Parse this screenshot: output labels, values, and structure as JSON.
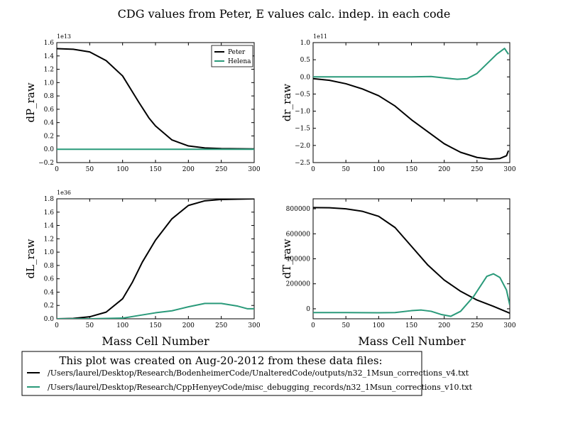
{
  "figure": {
    "title": "CDG values from Peter, E values calc. indep. in each code",
    "xlabel": "Mass Cell Number",
    "note_title": "This plot was created on Aug-20-2012 from these data files:",
    "files": [
      {
        "color": "#000000",
        "label": "/Users/laurel/Desktop/Research/BodenheimerCode/UnalteredCode/outputs/n32_1Msun_corrections_v4.txt"
      },
      {
        "color": "#2a9a7a",
        "label": "/Users/laurel/Desktop/Research/CppHenyeyCode/misc_debugging_records/n32_1Msun_corrections_v10.txt"
      }
    ],
    "colors": {
      "peter": "#000000",
      "helena": "#2a9a7a"
    }
  },
  "chart_data": [
    {
      "type": "line",
      "ylabel": "dP_raw",
      "exponent": "1e13",
      "xlim": [
        0,
        300
      ],
      "ylim": [
        -0.2,
        1.6
      ],
      "xticks": [
        "0",
        "50",
        "100",
        "150",
        "200",
        "250",
        "300"
      ],
      "yticks": [
        "−0.2",
        "0.0",
        "0.2",
        "0.4",
        "0.6",
        "0.8",
        "1.0",
        "1.2",
        "1.4",
        "1.6"
      ],
      "legend": {
        "placement": "top-right",
        "entries": [
          "Peter",
          "Helena"
        ]
      },
      "series": [
        {
          "name": "Peter",
          "color": "#000000",
          "x": [
            0,
            25,
            50,
            75,
            100,
            115,
            125,
            140,
            150,
            175,
            200,
            225,
            250,
            300
          ],
          "y": [
            1.51,
            1.5,
            1.46,
            1.33,
            1.1,
            0.86,
            0.7,
            0.47,
            0.35,
            0.14,
            0.05,
            0.02,
            0.01,
            0.005
          ]
        },
        {
          "name": "Helena",
          "color": "#2a9a7a",
          "x": [
            0,
            50,
            100,
            150,
            200,
            250,
            300
          ],
          "y": [
            0.0,
            0.0,
            0.0,
            0.0,
            0.0,
            0.0,
            0.0
          ]
        }
      ]
    },
    {
      "type": "line",
      "ylabel": "dr_raw",
      "exponent": "1e11",
      "xlim": [
        0,
        300
      ],
      "ylim": [
        -2.5,
        1.0
      ],
      "xticks": [
        "0",
        "50",
        "100",
        "150",
        "200",
        "250",
        "300"
      ],
      "yticks": [
        "−2.5",
        "−2.0",
        "−1.5",
        "−1.0",
        "−0.5",
        "0.0",
        "0.5",
        "1.0"
      ],
      "series": [
        {
          "name": "Peter",
          "color": "#000000",
          "x": [
            0,
            25,
            50,
            75,
            100,
            125,
            150,
            175,
            200,
            225,
            250,
            270,
            285,
            295,
            298
          ],
          "y": [
            -0.05,
            -0.1,
            -0.2,
            -0.35,
            -0.55,
            -0.85,
            -1.25,
            -1.6,
            -1.95,
            -2.2,
            -2.35,
            -2.4,
            -2.38,
            -2.3,
            -2.15
          ]
        },
        {
          "name": "Helena",
          "color": "#2a9a7a",
          "x": [
            0,
            50,
            100,
            150,
            180,
            200,
            220,
            235,
            250,
            265,
            280,
            292,
            298
          ],
          "y": [
            0.0,
            0.0,
            0.0,
            0.0,
            0.01,
            -0.03,
            -0.07,
            -0.05,
            0.1,
            0.38,
            0.66,
            0.83,
            0.66
          ]
        }
      ]
    },
    {
      "type": "line",
      "ylabel": "dL_raw",
      "exponent": "1e36",
      "xlim": [
        0,
        300
      ],
      "ylim": [
        0.0,
        1.8
      ],
      "xticks": [
        "0",
        "50",
        "100",
        "150",
        "200",
        "250",
        "300"
      ],
      "yticks": [
        "0.0",
        "0.2",
        "0.4",
        "0.6",
        "0.8",
        "1.0",
        "1.2",
        "1.4",
        "1.6",
        "1.8"
      ],
      "series": [
        {
          "name": "Peter",
          "color": "#000000",
          "x": [
            0,
            25,
            50,
            75,
            100,
            115,
            130,
            150,
            175,
            200,
            225,
            250,
            275,
            300
          ],
          "y": [
            0.0,
            0.005,
            0.03,
            0.1,
            0.3,
            0.55,
            0.85,
            1.18,
            1.5,
            1.7,
            1.77,
            1.79,
            1.795,
            1.8
          ]
        },
        {
          "name": "Helena",
          "color": "#2a9a7a",
          "x": [
            0,
            50,
            100,
            125,
            150,
            175,
            200,
            225,
            250,
            275,
            290,
            300
          ],
          "y": [
            0.0,
            0.0,
            0.01,
            0.05,
            0.09,
            0.12,
            0.18,
            0.23,
            0.23,
            0.19,
            0.15,
            0.15
          ]
        }
      ]
    },
    {
      "type": "line",
      "ylabel": "dT_raw",
      "xlim": [
        0,
        300
      ],
      "ylim": [
        -80000,
        880000
      ],
      "xticks": [
        "0",
        "50",
        "100",
        "150",
        "200",
        "250",
        "300"
      ],
      "yticks": [
        "0",
        "200000",
        "400000",
        "600000",
        "800000"
      ],
      "ytick_values": [
        0,
        200000,
        400000,
        600000,
        800000
      ],
      "series": [
        {
          "name": "Peter",
          "color": "#000000",
          "x": [
            0,
            25,
            50,
            75,
            100,
            125,
            150,
            175,
            200,
            225,
            250,
            275,
            300
          ],
          "y": [
            810000,
            808000,
            800000,
            780000,
            740000,
            650000,
            500000,
            350000,
            230000,
            140000,
            70000,
            20000,
            -35000
          ]
        },
        {
          "name": "Helena",
          "color": "#2a9a7a",
          "x": [
            0,
            50,
            100,
            125,
            150,
            165,
            180,
            195,
            210,
            225,
            245,
            265,
            275,
            285,
            295,
            300
          ],
          "y": [
            -30000,
            -30000,
            -32000,
            -30000,
            -15000,
            -10000,
            -20000,
            -45000,
            -60000,
            -20000,
            100000,
            260000,
            280000,
            250000,
            150000,
            30000
          ]
        }
      ]
    }
  ]
}
